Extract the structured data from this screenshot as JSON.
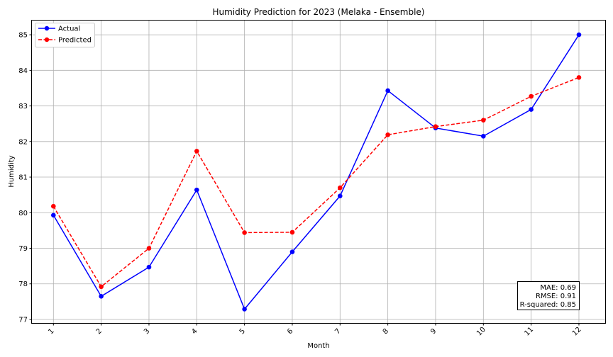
{
  "chart_data": {
    "type": "line",
    "title": "Humidity Prediction for 2023 (Melaka - Ensemble)",
    "xlabel": "Month",
    "ylabel": "Humidity",
    "x": [
      1,
      2,
      3,
      4,
      5,
      6,
      7,
      8,
      9,
      10,
      11,
      12
    ],
    "xlim": [
      0.55,
      12.55
    ],
    "ylim": [
      76.9,
      85.4
    ],
    "yticks": [
      77,
      78,
      79,
      80,
      81,
      82,
      83,
      84,
      85
    ],
    "grid": true,
    "legend_position": "top-left",
    "series": [
      {
        "name": "Actual",
        "color": "#0000ff",
        "line_style": "solid",
        "values": [
          79.93,
          77.65,
          78.47,
          80.64,
          77.29,
          78.9,
          80.47,
          83.43,
          82.38,
          82.15,
          82.9,
          85.0
        ]
      },
      {
        "name": "Predicted",
        "color": "#ff0000",
        "line_style": "dashed",
        "values": [
          80.18,
          77.92,
          79.0,
          81.73,
          79.44,
          79.45,
          80.7,
          82.19,
          82.42,
          82.6,
          83.27,
          83.8
        ]
      }
    ],
    "metrics": {
      "mae": "MAE: 0.69",
      "rmse": "RMSE: 0.91",
      "r2": "R-squared: 0.85"
    }
  }
}
